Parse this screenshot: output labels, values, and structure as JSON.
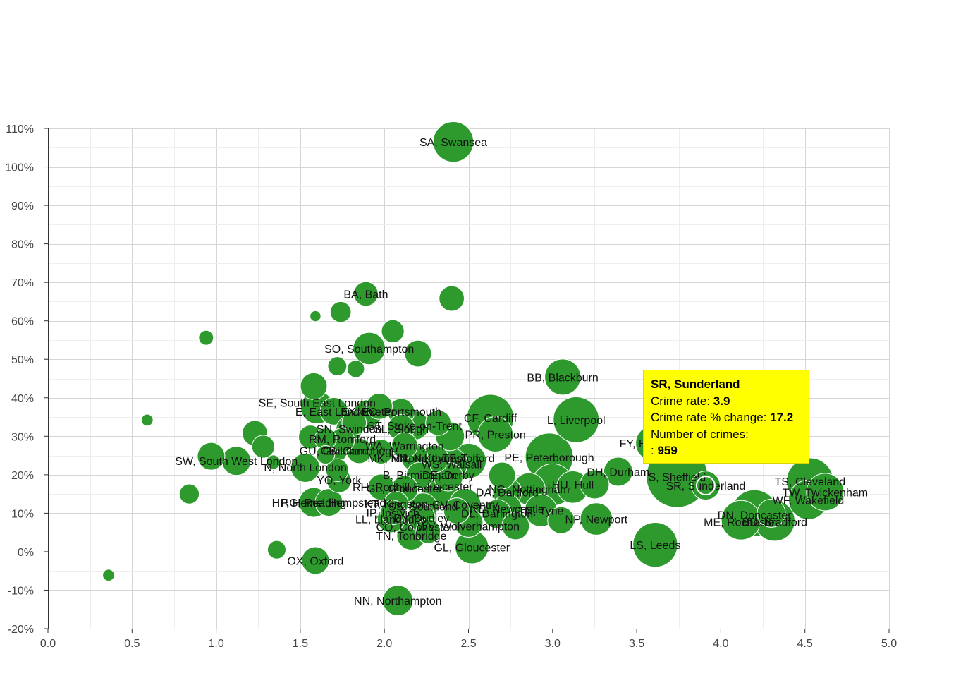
{
  "chart_data": {
    "type": "scatter",
    "xlim": [
      0,
      5
    ],
    "ylim": [
      -20,
      110
    ],
    "x_ticks": [
      "0.0",
      "0.5",
      "1.0",
      "1.5",
      "2.0",
      "2.5",
      "3.0",
      "3.5",
      "4.0",
      "4.5",
      "5.0"
    ],
    "y_ticks": [
      "-20%",
      "-10%",
      "0%",
      "10%",
      "20%",
      "30%",
      "40%",
      "50%",
      "60%",
      "70%",
      "80%",
      "90%",
      "100%",
      "110%"
    ],
    "grid": true,
    "legend": "none",
    "bubble_color": "#2e9a2e",
    "points": [
      {
        "x": 2.41,
        "y": 106.5,
        "s": 820,
        "label": "SA, Swansea"
      },
      {
        "x": 1.89,
        "y": 67,
        "s": 300,
        "label": "BA, Bath"
      },
      {
        "x": 2.4,
        "y": 65.8,
        "s": 320,
        "label": ""
      },
      {
        "x": 1.74,
        "y": 62.3,
        "s": 220,
        "label": ""
      },
      {
        "x": 1.59,
        "y": 61.2,
        "s": 60,
        "label": ""
      },
      {
        "x": 0.94,
        "y": 55.6,
        "s": 110,
        "label": ""
      },
      {
        "x": 2.05,
        "y": 57.3,
        "s": 260,
        "label": ""
      },
      {
        "x": 1.91,
        "y": 52.8,
        "s": 520,
        "label": "SO, Southampton"
      },
      {
        "x": 2.2,
        "y": 51.5,
        "s": 360,
        "label": ""
      },
      {
        "x": 1.72,
        "y": 48.2,
        "s": 180,
        "label": ""
      },
      {
        "x": 1.83,
        "y": 47.5,
        "s": 150,
        "label": ""
      },
      {
        "x": 3.06,
        "y": 45.4,
        "s": 650,
        "label": "BB, Blackburn"
      },
      {
        "x": 1.58,
        "y": 43,
        "s": 360,
        "label": ""
      },
      {
        "x": 1.6,
        "y": 37.5,
        "s": 540,
        "label": "SE, South East London"
      },
      {
        "x": 1.97,
        "y": 37.8,
        "s": 340,
        "label": ""
      },
      {
        "x": 1.7,
        "y": 36.5,
        "s": 380,
        "label": "E, East London"
      },
      {
        "x": 1.9,
        "y": 35.8,
        "s": 400,
        "label": "EX, Exeter"
      },
      {
        "x": 2.1,
        "y": 36.3,
        "s": 360,
        "label": "PO, Portsmouth"
      },
      {
        "x": 0.59,
        "y": 34.2,
        "s": 70,
        "label": ""
      },
      {
        "x": 2.63,
        "y": 34.8,
        "s": 1100,
        "label": "CF, Cardiff"
      },
      {
        "x": 3.14,
        "y": 34.3,
        "s": 1050,
        "label": "L, Liverpool"
      },
      {
        "x": 2.32,
        "y": 33.5,
        "s": 320,
        "label": ""
      },
      {
        "x": 1.82,
        "y": 33.5,
        "s": 300,
        "label": ""
      },
      {
        "x": 2.18,
        "y": 32.8,
        "s": 420,
        "label": "ST, Stoke-on-Trent"
      },
      {
        "x": 2.1,
        "y": 32.2,
        "s": 360,
        "label": "SL, Slough"
      },
      {
        "x": 1.79,
        "y": 31.8,
        "s": 340,
        "label": "SN, Swindon"
      },
      {
        "x": 1.23,
        "y": 30.8,
        "s": 320,
        "label": ""
      },
      {
        "x": 2.66,
        "y": 30.5,
        "s": 620,
        "label": "PR, Preston"
      },
      {
        "x": 2.39,
        "y": 30,
        "s": 420,
        "label": ""
      },
      {
        "x": 1.56,
        "y": 29.8,
        "s": 280,
        "label": ""
      },
      {
        "x": 1.65,
        "y": 29.3,
        "s": 240,
        "label": ""
      },
      {
        "x": 1.75,
        "y": 29,
        "s": 300,
        "label": "RM, Romford"
      },
      {
        "x": 3.6,
        "y": 28.2,
        "s": 640,
        "label": "FY, Blackpool"
      },
      {
        "x": 1.28,
        "y": 27.3,
        "s": 260,
        "label": ""
      },
      {
        "x": 2.12,
        "y": 27.6,
        "s": 340,
        "label": "WA, Warrington"
      },
      {
        "x": 1.7,
        "y": 26.3,
        "s": 360,
        "label": "GU, Guildford"
      },
      {
        "x": 1.85,
        "y": 26.2,
        "s": 320,
        "label": "CB, Cambridge"
      },
      {
        "x": 1.98,
        "y": 26,
        "s": 300,
        "label": ""
      },
      {
        "x": 1.65,
        "y": 25.2,
        "s": 170,
        "label": ""
      },
      {
        "x": 0.97,
        "y": 24.8,
        "s": 380,
        "label": ""
      },
      {
        "x": 2.98,
        "y": 24.6,
        "s": 1150,
        "label": "PE, Peterborough"
      },
      {
        "x": 2.18,
        "y": 24.4,
        "s": 360,
        "label": "MK, Milton Keynes"
      },
      {
        "x": 2.3,
        "y": 24.1,
        "s": 380,
        "label": "NN2"
      },
      {
        "x": 2.5,
        "y": 23.6,
        "s": 620,
        "label": "TF, Telford"
      },
      {
        "x": 1.12,
        "y": 23.6,
        "s": 420,
        "label": "SW, South West London"
      },
      {
        "x": 1.34,
        "y": 23.3,
        "s": 100,
        "label": ""
      },
      {
        "x": 2.4,
        "y": 22.8,
        "s": 500,
        "label": "WS, Walsall"
      },
      {
        "x": 1.53,
        "y": 21.8,
        "s": 420,
        "label": "N, North London"
      },
      {
        "x": 1.72,
        "y": 21.2,
        "s": 260,
        "label": ""
      },
      {
        "x": 3.39,
        "y": 20.8,
        "s": 420,
        "label": "DH, Durham"
      },
      {
        "x": 3.74,
        "y": 19.5,
        "s": 1900,
        "label": "S, Sheffield"
      },
      {
        "x": 2.7,
        "y": 19.8,
        "s": 360,
        "label": ""
      },
      {
        "x": 2.21,
        "y": 19.8,
        "s": 360,
        "label": "B, Birmingham"
      },
      {
        "x": 2.38,
        "y": 19.5,
        "s": 420,
        "label": "DE, Derby"
      },
      {
        "x": 1.73,
        "y": 18.5,
        "s": 300,
        "label": "YO, York"
      },
      {
        "x": 4.53,
        "y": 18.3,
        "s": 1100,
        "label": "TS, Cleveland"
      },
      {
        "x": 3.25,
        "y": 17.5,
        "s": 420,
        "label": ""
      },
      {
        "x": 3.91,
        "y": 17.2,
        "s": 420,
        "label": "SR, Sunderland"
      },
      {
        "x": 3.0,
        "y": 17.4,
        "s": 880,
        "label": "HU, Hull"
      },
      {
        "x": 3.12,
        "y": 16.8,
        "s": 520,
        "label": ""
      },
      {
        "x": 2.86,
        "y": 16.3,
        "s": 520,
        "label": "NG, Nottingham"
      },
      {
        "x": 1.98,
        "y": 16.8,
        "s": 340,
        "label": "RH, Redhill"
      },
      {
        "x": 2.12,
        "y": 16.3,
        "s": 360,
        "label": "GL2, Gloucester"
      },
      {
        "x": 2.33,
        "y": 16.6,
        "s": 680,
        "label": "LE, Leicester"
      },
      {
        "x": 0.84,
        "y": 15,
        "s": 200,
        "label": ""
      },
      {
        "x": 2.73,
        "y": 15.5,
        "s": 420,
        "label": "DA, Dartford"
      },
      {
        "x": 4.62,
        "y": 15.5,
        "s": 700,
        "label": "TW, Twickenham"
      },
      {
        "x": 4.52,
        "y": 13.5,
        "s": 780,
        "label": "WF, Wakefield"
      },
      {
        "x": 1.58,
        "y": 12.8,
        "s": 440,
        "label": "RG, Reading"
      },
      {
        "x": 1.67,
        "y": 12.8,
        "s": 380,
        "label": "HP, Hemel Hempstead"
      },
      {
        "x": 2.07,
        "y": 12.5,
        "s": 300,
        "label": "KT, Kingston"
      },
      {
        "x": 2.48,
        "y": 12.3,
        "s": 500,
        "label": "CV, Coventry"
      },
      {
        "x": 2.23,
        "y": 11.5,
        "s": 420,
        "label": "SS, Southend"
      },
      {
        "x": 2.73,
        "y": 11.2,
        "s": 420,
        "label": "NE, Newcastle"
      },
      {
        "x": 2.93,
        "y": 10.7,
        "s": 520,
        "label": "TN2, Tyne"
      },
      {
        "x": 2.43,
        "y": 10.6,
        "s": 340,
        "label": ""
      },
      {
        "x": 2.05,
        "y": 10.2,
        "s": 300,
        "label": "IP, Ipswich"
      },
      {
        "x": 4.2,
        "y": 10,
        "s": 1100,
        "label": "DN, Doncaster"
      },
      {
        "x": 4.3,
        "y": 10,
        "s": 400,
        "label": ""
      },
      {
        "x": 2.67,
        "y": 9.8,
        "s": 420,
        "label": "DL, Darlington"
      },
      {
        "x": 2.22,
        "y": 8.8,
        "s": 380,
        "label": "DY, Dudley"
      },
      {
        "x": 2.04,
        "y": 8.5,
        "s": 380,
        "label": "LL, Llandudno"
      },
      {
        "x": 4.12,
        "y": 8.2,
        "s": 780,
        "label": "ME, Rochester"
      },
      {
        "x": 3.26,
        "y": 8.5,
        "s": 520,
        "label": "NP, Newport"
      },
      {
        "x": 4.32,
        "y": 8,
        "s": 820,
        "label": "BD, Bradford"
      },
      {
        "x": 3.05,
        "y": 8.2,
        "s": 360,
        "label": ""
      },
      {
        "x": 2.5,
        "y": 7.5,
        "s": 420,
        "label": "WV, Wolverhampton"
      },
      {
        "x": 2.78,
        "y": 6.7,
        "s": 380,
        "label": ""
      },
      {
        "x": 2.18,
        "y": 6.2,
        "s": 460,
        "label": "CO, Colchester"
      },
      {
        "x": 2.26,
        "y": 5.3,
        "s": 300,
        "label": ""
      },
      {
        "x": 2.16,
        "y": 4.2,
        "s": 420,
        "label": "TN, Tonbridge"
      },
      {
        "x": 3.61,
        "y": 1.8,
        "s": 1000,
        "label": "LS, Leeds"
      },
      {
        "x": 2.52,
        "y": 1.2,
        "s": 560,
        "label": "GL, Gloucester"
      },
      {
        "x": 1.36,
        "y": 0.5,
        "s": 170,
        "label": ""
      },
      {
        "x": 1.59,
        "y": -2.3,
        "s": 380,
        "label": "OX, Oxford"
      },
      {
        "x": 0.36,
        "y": -6.1,
        "s": 70,
        "label": ""
      },
      {
        "x": 2.08,
        "y": -12.7,
        "s": 460,
        "label": "NN, Northampton"
      }
    ],
    "labels_shown": [
      {
        "text": "SA, Swansea",
        "x": 2.41,
        "y": 106.5
      },
      {
        "text": "BA, Bath",
        "x": 1.89,
        "y": 67
      },
      {
        "text": "SO, Southampton",
        "x": 1.91,
        "y": 52.8
      },
      {
        "text": "BB, Blackburn",
        "x": 3.06,
        "y": 45.4
      },
      {
        "text": "SE, South East London",
        "x": 1.6,
        "y": 38.8
      },
      {
        "text": "E, East London",
        "x": 1.7,
        "y": 36.5
      },
      {
        "text": "EX, Exeter",
        "x": 1.9,
        "y": 36.5
      },
      {
        "text": "PO, Portsmouth",
        "x": 2.1,
        "y": 36.5
      },
      {
        "text": "CF, Cardiff",
        "x": 2.63,
        "y": 34.8
      },
      {
        "text": "L, Liverpool",
        "x": 3.14,
        "y": 34.3
      },
      {
        "text": "ST, Stoke-on-Trent",
        "x": 2.18,
        "y": 32.8
      },
      {
        "text": "SN, Swindon",
        "x": 1.79,
        "y": 32
      },
      {
        "text": "SL, Slough",
        "x": 2.1,
        "y": 32
      },
      {
        "text": "PR, Preston",
        "x": 2.66,
        "y": 30.5
      },
      {
        "text": "RM, Romford",
        "x": 1.75,
        "y": 29.3
      },
      {
        "text": "FY, Blackpool",
        "x": 3.6,
        "y": 28.2
      },
      {
        "text": "WA, Warrington",
        "x": 2.12,
        "y": 27.6
      },
      {
        "text": "GU, Guildford",
        "x": 1.7,
        "y": 26.3
      },
      {
        "text": "CB, Cambridge",
        "x": 1.85,
        "y": 26.3
      },
      {
        "text": "MK, Milton Keynes",
        "x": 2.18,
        "y": 24.4
      },
      {
        "text": "NN, Northampton",
        "x": 2.3,
        "y": 24.4
      },
      {
        "text": "TF, Telford",
        "x": 2.5,
        "y": 24.4
      },
      {
        "text": "PE, Peterborough",
        "x": 2.98,
        "y": 24.6
      },
      {
        "text": "SW, South West London",
        "x": 1.12,
        "y": 23.6
      },
      {
        "text": "N, North London",
        "x": 1.53,
        "y": 22
      },
      {
        "text": "WS, Walsall",
        "x": 2.4,
        "y": 22.8
      },
      {
        "text": "DH, Durham",
        "x": 3.39,
        "y": 20.8
      },
      {
        "text": "B, Birmingham",
        "x": 2.21,
        "y": 20
      },
      {
        "text": "DE, Derby",
        "x": 2.38,
        "y": 20
      },
      {
        "text": "S, Sheffield",
        "x": 3.74,
        "y": 19.5
      },
      {
        "text": "YO, York",
        "x": 1.73,
        "y": 18.7
      },
      {
        "text": "TS, Cleveland",
        "x": 4.53,
        "y": 18.3
      },
      {
        "text": "HU, Hull",
        "x": 3.12,
        "y": 17.5
      },
      {
        "text": "SR, Sunderland",
        "x": 3.91,
        "y": 17.2
      },
      {
        "text": "RH, Redhill",
        "x": 1.98,
        "y": 16.9
      },
      {
        "text": "GL, Gloucester",
        "x": 2.12,
        "y": 16.5
      },
      {
        "text": "LE, Leicester",
        "x": 2.33,
        "y": 17
      },
      {
        "text": "NG, Nottingham",
        "x": 2.86,
        "y": 16.3
      },
      {
        "text": "DA, Dartford",
        "x": 2.73,
        "y": 15.5
      },
      {
        "text": "TW, Twickenham",
        "x": 4.62,
        "y": 15.5
      },
      {
        "text": "WF, Wakefield",
        "x": 4.52,
        "y": 13.5
      },
      {
        "text": "RG, Reading",
        "x": 1.58,
        "y": 12.8
      },
      {
        "text": "HP, Hemel Hempstead",
        "x": 1.67,
        "y": 12.8
      },
      {
        "text": "KT, Kingston",
        "x": 2.07,
        "y": 12.5
      },
      {
        "text": "CV, Coventry",
        "x": 2.48,
        "y": 12.3
      },
      {
        "text": "SS, Southend",
        "x": 2.23,
        "y": 11.8
      },
      {
        "text": "NE, Newcastle",
        "x": 2.73,
        "y": 11.2
      },
      {
        "text": "TN, Tyne",
        "x": 2.93,
        "y": 10.7
      },
      {
        "text": "IP, Ipswich",
        "x": 2.05,
        "y": 10.2
      },
      {
        "text": "DN, Doncaster",
        "x": 4.2,
        "y": 9.6
      },
      {
        "text": "DL, Darlington",
        "x": 2.67,
        "y": 10
      },
      {
        "text": "DY, Dudley",
        "x": 2.22,
        "y": 8.8
      },
      {
        "text": "LL, Llandudno",
        "x": 2.04,
        "y": 8.5
      },
      {
        "text": "ME, Rochester",
        "x": 4.12,
        "y": 7.8
      },
      {
        "text": "BD, Bradford",
        "x": 4.32,
        "y": 7.8
      },
      {
        "text": "NP, Newport",
        "x": 3.26,
        "y": 8.5
      },
      {
        "text": "WV, Wolverhampton",
        "x": 2.5,
        "y": 6.7
      },
      {
        "text": "CO, Colchester",
        "x": 2.18,
        "y": 6.5
      },
      {
        "text": "TN, Tonbridge",
        "x": 2.16,
        "y": 4.2
      },
      {
        "text": "LS, Leeds",
        "x": 3.61,
        "y": 1.8
      },
      {
        "text": "GL, Gloucester",
        "x": 2.52,
        "y": 1.2
      },
      {
        "text": "OX, Oxford",
        "x": 1.59,
        "y": -2.3
      },
      {
        "text": "NN, Northampton",
        "x": 2.08,
        "y": -12.7
      }
    ],
    "highlight": {
      "x": 3.91,
      "y": 17.2
    }
  },
  "tooltip": {
    "title": "SR, Sunderland",
    "rate_label": "Crime rate: ",
    "rate_value": "3.9",
    "change_label": "Crime rate % change: ",
    "change_value": "17.2",
    "count_label": "Number of crimes:",
    "count_prefix": ": ",
    "count_value": "959"
  }
}
